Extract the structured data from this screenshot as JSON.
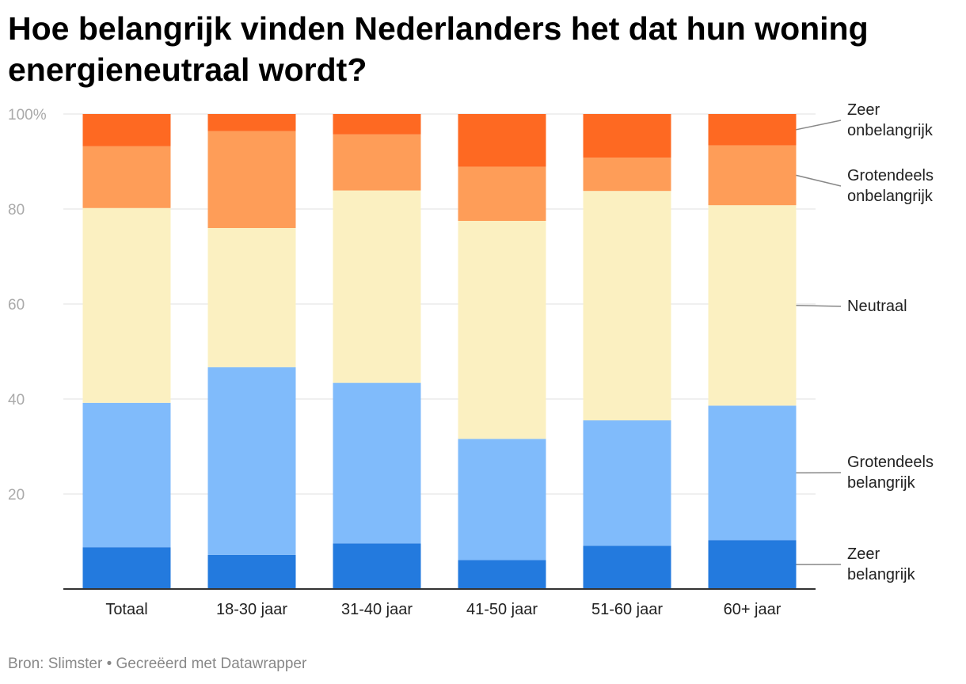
{
  "chart_data": {
    "type": "bar",
    "stacked": true,
    "title": "Hoe belangrijk vinden Nederlanders het dat hun woning energieneutraal wordt?",
    "xlabel": "",
    "ylabel": "",
    "ylim": [
      0,
      100
    ],
    "y_ticks": [
      20,
      40,
      60,
      80,
      100
    ],
    "y_tick_labels": [
      "20",
      "40",
      "60",
      "80",
      "100%"
    ],
    "categories": [
      "Totaal",
      "18-30 jaar",
      "31-40 jaar",
      "41-50 jaar",
      "51-60 jaar",
      "60+ jaar"
    ],
    "series": [
      {
        "name": "Zeer belangrijk",
        "color": "#237ade",
        "values": [
          8.8,
          7.2,
          9.6,
          6.1,
          9.1,
          10.3
        ]
      },
      {
        "name": "Grotendeels belangrijk",
        "color": "#80bbfb",
        "values": [
          30.4,
          39.5,
          33.8,
          25.5,
          26.4,
          28.3
        ]
      },
      {
        "name": "Neutraal",
        "color": "#fbf0c1",
        "values": [
          41.0,
          29.3,
          40.5,
          45.9,
          48.3,
          42.2
        ]
      },
      {
        "name": "Grotendeels onbelangrijk",
        "color": "#fe9d58",
        "values": [
          13.0,
          20.4,
          11.8,
          11.4,
          7.0,
          12.6
        ]
      },
      {
        "name": "Zeer onbelangrijk",
        "color": "#fe6922",
        "values": [
          6.8,
          3.6,
          4.3,
          11.1,
          9.2,
          6.6
        ]
      }
    ],
    "legend": {
      "placement": "right",
      "labels": [
        {
          "series": "Zeer onbelangrijk",
          "lines": [
            "Zeer",
            "onbelangrijk"
          ]
        },
        {
          "series": "Grotendeels onbelangrijk",
          "lines": [
            "Grotendeels",
            "onbelangrijk"
          ]
        },
        {
          "series": "Neutraal",
          "lines": [
            "Neutraal"
          ]
        },
        {
          "series": "Grotendeels belangrijk",
          "lines": [
            "Grotendeels",
            "belangrijk"
          ]
        },
        {
          "series": "Zeer belangrijk",
          "lines": [
            "Zeer",
            "belangrijk"
          ]
        }
      ]
    },
    "grid": true
  },
  "footer": {
    "source_text": "Bron: Slimster • Gecreëerd met Datawrapper"
  },
  "colors": {
    "grid": "#e0e0e0",
    "axis": "#333333",
    "leader": "#888888"
  }
}
